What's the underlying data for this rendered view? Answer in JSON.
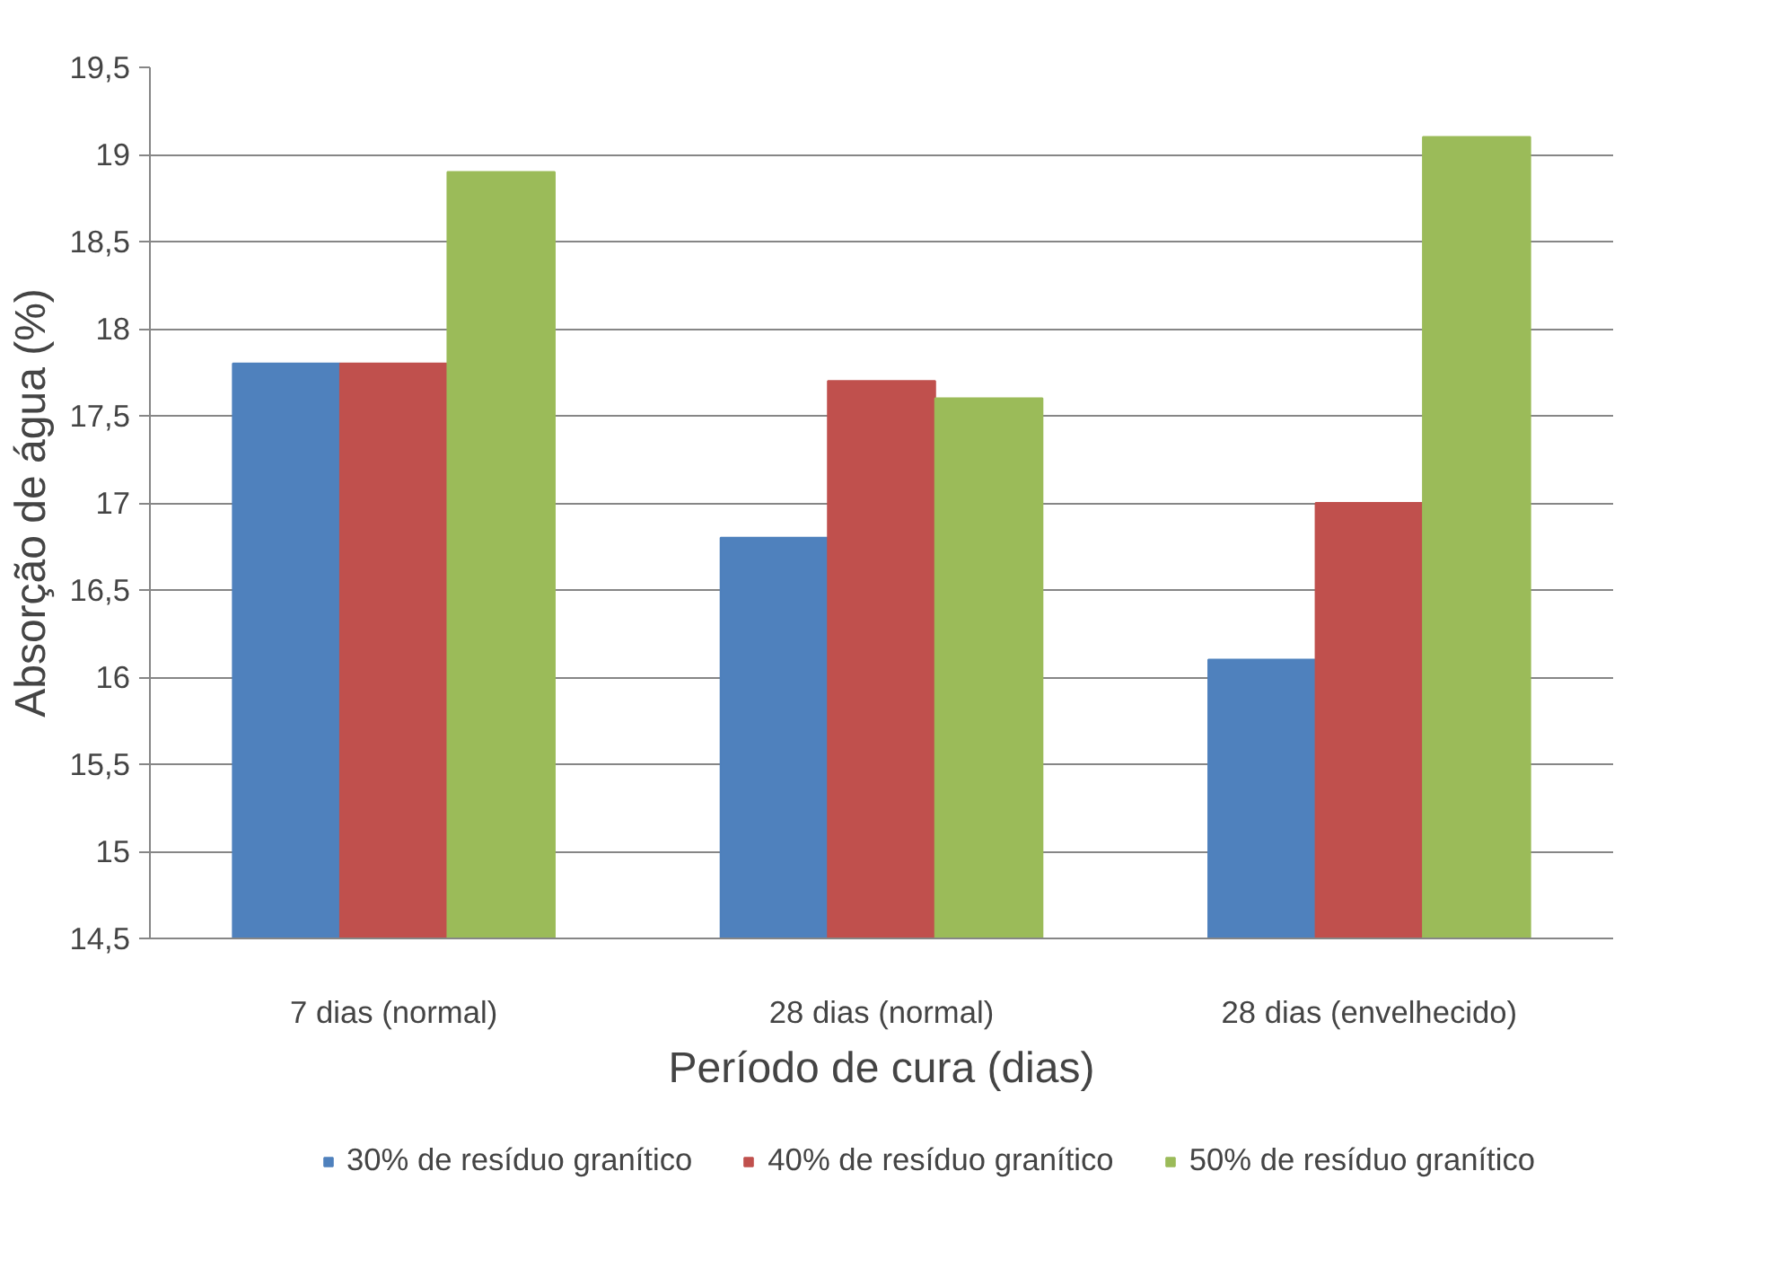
{
  "chart_data": {
    "type": "bar",
    "xlabel": "Período de cura (dias)",
    "ylabel": "Absorção de água (%)",
    "categories": [
      "7 dias (normal)",
      "28 dias (normal)",
      "28 dias (envelhecido)"
    ],
    "series": [
      {
        "name": "30% de resíduo granítico",
        "color": "#4f81bd",
        "values": [
          17.8,
          16.8,
          16.1
        ]
      },
      {
        "name": "40% de resíduo granítico",
        "color": "#c0504d",
        "values": [
          17.8,
          17.7,
          17.0
        ]
      },
      {
        "name": "50% de resíduo granítico",
        "color": "#9bbb59",
        "values": [
          18.9,
          17.6,
          19.1
        ]
      }
    ],
    "ylim": [
      14.5,
      19.5
    ],
    "yticks": [
      {
        "value": 14.5,
        "label": "14,5"
      },
      15,
      {
        "value": 15.5,
        "label": "15,5"
      },
      16,
      {
        "value": 16.5,
        "label": "16,5"
      },
      17,
      {
        "value": 17.5,
        "label": "17,5"
      },
      18,
      {
        "value": 18.5,
        "label": "18,5"
      },
      19,
      {
        "value": 19.5,
        "label": "19,5"
      }
    ],
    "grid": "y",
    "legend": "bottom"
  }
}
